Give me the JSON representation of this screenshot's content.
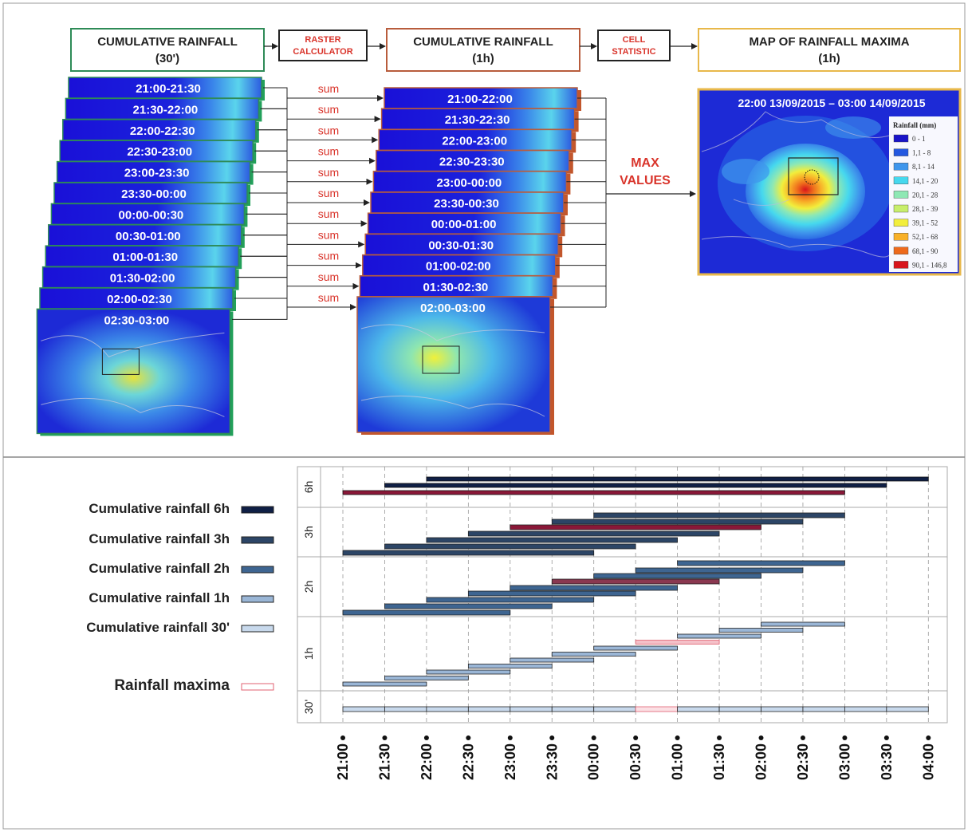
{
  "workflow": {
    "box_30min": {
      "line1": "CUMULATIVE RAINFALL",
      "line2": "(30')"
    },
    "op_raster": {
      "line1": "RASTER",
      "line2": "CALCULATOR"
    },
    "box_1h": {
      "line1": "CUMULATIVE RAINFALL",
      "line2": "(1h)"
    },
    "op_cell": {
      "line1": "CELL",
      "line2": "STATISTIC"
    },
    "box_map": {
      "line1": "MAP OF RAINFALL MAXIMA",
      "line2": "(1h)"
    },
    "sum_label": "sum",
    "max_label": {
      "line1": "MAX",
      "line2": "VALUES"
    },
    "halfhour_stack": [
      "21:00-21:30",
      "21:30-22:00",
      "22:00-22:30",
      "22:30-23:00",
      "23:00-23:30",
      "23:30-00:00",
      "00:00-00:30",
      "00:30-01:00",
      "01:00-01:30",
      "01:30-02:00",
      "02:00-02:30",
      "02:30-03:00"
    ],
    "hourly_stack": [
      "21:00-22:00",
      "21:30-22:30",
      "22:00-23:00",
      "22:30-23:30",
      "23:00-00:00",
      "23:30-00:30",
      "00:00-01:00",
      "00:30-01:30",
      "01:00-02:00",
      "01:30-02:30",
      "02:00-03:00"
    ],
    "map_title": "22:00 13/09/2015 – 03:00 14/09/2015",
    "legend_title": "Rainfall (mm)",
    "legend": [
      {
        "label": "0 - 1",
        "color": "#1a14c8"
      },
      {
        "label": "1,1 - 8",
        "color": "#2458e0"
      },
      {
        "label": "8,1 - 14",
        "color": "#3f96ec"
      },
      {
        "label": "14,1 - 20",
        "color": "#46d8ee"
      },
      {
        "label": "20,1 - 28",
        "color": "#8ee8b4"
      },
      {
        "label": "28,1 - 39",
        "color": "#c8ee6c"
      },
      {
        "label": "39,1 - 52",
        "color": "#f2ee3c"
      },
      {
        "label": "52,1 - 68",
        "color": "#f8b028"
      },
      {
        "label": "68,1 - 90",
        "color": "#ee6a1c"
      },
      {
        "label": "90,1 - 146,8",
        "color": "#d8141c"
      }
    ]
  },
  "timeline": {
    "legend": [
      {
        "label": "Cumulative rainfall 6h",
        "color": "#0f1f45"
      },
      {
        "label": "Cumulative rainfall 3h",
        "color": "#2c4566"
      },
      {
        "label": "Cumulative rainfall 2h",
        "color": "#3e6591"
      },
      {
        "label": "Cumulative rainfall 1h",
        "color": "#9ab6d6"
      },
      {
        "label": "Cumulative rainfall 30'",
        "color": "#c8d9ec"
      },
      {
        "label": "Rainfall maxima",
        "color": "#e06070"
      }
    ],
    "rows": [
      "6h",
      "3h",
      "2h",
      "1h",
      "30'"
    ],
    "ticks": [
      "21:00",
      "21:30",
      "22:00",
      "22:30",
      "23:00",
      "23:30",
      "00:00",
      "00:30",
      "01:00",
      "01:30",
      "02:00",
      "02:30",
      "03:00",
      "03:30",
      "04:00"
    ]
  }
}
